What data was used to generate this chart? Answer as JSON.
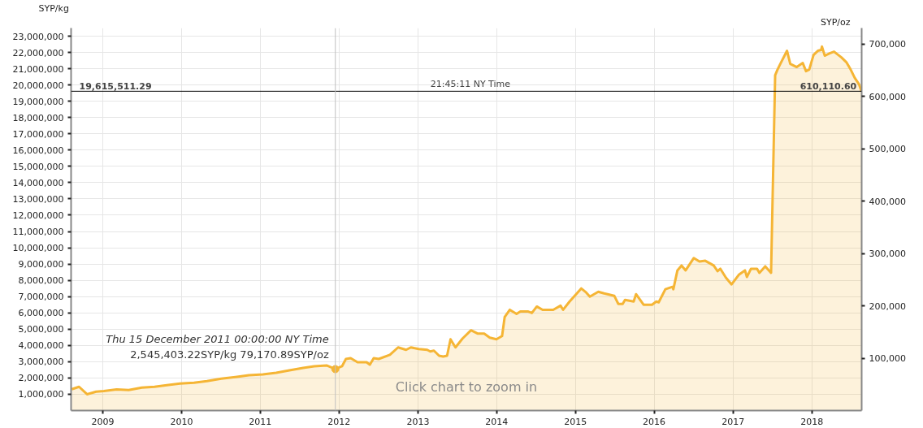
{
  "chart_data": {
    "type": "area",
    "ylabel": "SYP/kg",
    "y2label": "SYP/oz",
    "x": [
      "2008-08-10",
      "2008-09-13",
      "2008-10-20",
      "2008-12-01",
      "2009-01-06",
      "2009-03-06",
      "2009-05-01",
      "2009-07-01",
      "2009-08-29",
      "2009-10-25",
      "2009-12-25",
      "2010-02-28",
      "2010-04-29",
      "2010-07-04",
      "2010-09-08",
      "2010-11-09",
      "2011-01-13",
      "2011-03-16",
      "2011-05-16",
      "2011-07-19",
      "2011-09-08",
      "2011-11-04",
      "2011-12-15",
      "2012-01-15",
      "2012-02-02",
      "2012-02-24",
      "2012-03-27",
      "2012-05-08",
      "2012-05-23",
      "2012-06-10",
      "2012-07-03",
      "2012-08-24",
      "2012-10-01",
      "2012-11-07",
      "2012-11-29",
      "2013-01-05",
      "2013-02-13",
      "2013-02-27",
      "2013-03-16",
      "2013-04-09",
      "2013-04-28",
      "2013-05-16",
      "2013-06-01",
      "2013-06-24",
      "2013-07-27",
      "2013-09-04",
      "2013-10-04",
      "2013-11-04",
      "2013-11-30",
      "2013-12-31",
      "2014-01-26",
      "2014-02-07",
      "2014-03-03",
      "2014-04-03",
      "2014-04-21",
      "2014-05-25",
      "2014-06-13",
      "2014-07-06",
      "2014-08-02",
      "2014-09-20",
      "2014-10-24",
      "2014-11-05",
      "2014-12-05",
      "2015-01-01",
      "2015-01-28",
      "2015-02-20",
      "2015-03-09",
      "2015-04-17",
      "2015-05-14",
      "2015-06-30",
      "2015-07-19",
      "2015-08-08",
      "2015-08-19",
      "2015-09-28",
      "2015-10-09",
      "2015-11-13",
      "2015-12-22",
      "2016-01-11",
      "2016-01-22",
      "2016-02-22",
      "2016-03-26",
      "2016-03-30",
      "2016-04-18",
      "2016-05-07",
      "2016-05-26",
      "2016-07-03",
      "2016-07-29",
      "2016-08-25",
      "2016-10-03",
      "2016-10-21",
      "2016-11-03",
      "2016-11-29",
      "2016-12-25",
      "2017-01-29",
      "2017-02-25",
      "2017-03-06",
      "2017-03-25",
      "2017-04-22",
      "2017-05-03",
      "2017-05-30",
      "2017-06-26",
      "2017-07-15",
      "2017-07-26",
      "2017-08-08",
      "2017-09-08",
      "2017-09-23",
      "2017-10-23",
      "2017-11-20",
      "2017-12-05",
      "2017-12-20",
      "2018-01-09",
      "2018-01-29",
      "2018-02-13",
      "2018-02-17",
      "2018-03-02",
      "2018-03-25",
      "2018-04-14",
      "2018-05-18",
      "2018-06-10",
      "2018-06-30",
      "2018-07-19",
      "2018-08-08",
      "2018-08-19"
    ],
    "series": [
      {
        "color": "#f5b535",
        "values": [
          1310000,
          1460000,
          1000000,
          1160000,
          1200000,
          1300000,
          1260000,
          1410000,
          1460000,
          1560000,
          1660000,
          1710000,
          1810000,
          1960000,
          2060000,
          2170000,
          2220000,
          2320000,
          2470000,
          2620000,
          2720000,
          2770000,
          2545403.22,
          2720000,
          3170000,
          3220000,
          2970000,
          2970000,
          2820000,
          3220000,
          3170000,
          3420000,
          3880000,
          3730000,
          3880000,
          3780000,
          3730000,
          3630000,
          3680000,
          3370000,
          3320000,
          3370000,
          4380000,
          3880000,
          4430000,
          4930000,
          4730000,
          4730000,
          4480000,
          4380000,
          4580000,
          5740000,
          6190000,
          5940000,
          6090000,
          6090000,
          5990000,
          6390000,
          6190000,
          6190000,
          6440000,
          6190000,
          6700000,
          7100000,
          7500000,
          7250000,
          7000000,
          7300000,
          7200000,
          7050000,
          6550000,
          6550000,
          6800000,
          6700000,
          7150000,
          6500000,
          6500000,
          6700000,
          6650000,
          7450000,
          7600000,
          7450000,
          8610000,
          8910000,
          8610000,
          9370000,
          9160000,
          9200000,
          8910000,
          8560000,
          8710000,
          8160000,
          7750000,
          8360000,
          8610000,
          8210000,
          8710000,
          8710000,
          8460000,
          8860000,
          8460000,
          20600000,
          20950000,
          21300000,
          22100000,
          21300000,
          21100000,
          21350000,
          20850000,
          20950000,
          21850000,
          22100000,
          22150000,
          22360000,
          21800000,
          21950000,
          22050000,
          21700000,
          21400000,
          20950000,
          20440000,
          20040000,
          19615511.29
        ]
      }
    ],
    "xlim": [
      "2008-08-07",
      "2018-08-20"
    ],
    "xticks": [
      "2009",
      "2010",
      "2011",
      "2012",
      "2013",
      "2014",
      "2015",
      "2016",
      "2017",
      "2018"
    ],
    "ylim": [
      0,
      23500000
    ],
    "yticks": [
      {
        "value": 1000000,
        "label": "1,000,000"
      },
      {
        "value": 2000000,
        "label": "2,000,000"
      },
      {
        "value": 3000000,
        "label": "3,000,000"
      },
      {
        "value": 4000000,
        "label": "4,000,000"
      },
      {
        "value": 5000000,
        "label": "5,000,000"
      },
      {
        "value": 6000000,
        "label": "6,000,000"
      },
      {
        "value": 7000000,
        "label": "7,000,000"
      },
      {
        "value": 8000000,
        "label": "8,000,000"
      },
      {
        "value": 9000000,
        "label": "9,000,000"
      },
      {
        "value": 10000000,
        "label": "10,000,000"
      },
      {
        "value": 11000000,
        "label": "11,000,000"
      },
      {
        "value": 12000000,
        "label": "12,000,000"
      },
      {
        "value": 13000000,
        "label": "13,000,000"
      },
      {
        "value": 14000000,
        "label": "14,000,000"
      },
      {
        "value": 15000000,
        "label": "15,000,000"
      },
      {
        "value": 16000000,
        "label": "16,000,000"
      },
      {
        "value": 17000000,
        "label": "17,000,000"
      },
      {
        "value": 18000000,
        "label": "18,000,000"
      },
      {
        "value": 19000000,
        "label": "19,000,000"
      },
      {
        "value": 20000000,
        "label": "20,000,000"
      },
      {
        "value": 21000000,
        "label": "21,000,000"
      },
      {
        "value": 22000000,
        "label": "22,000,000"
      },
      {
        "value": 23000000,
        "label": "23,000,000"
      }
    ],
    "y2lim": [
      0,
      731000
    ],
    "y2ticks": [
      {
        "value": 100000,
        "label": "100,000"
      },
      {
        "value": 200000,
        "label": "200,000"
      },
      {
        "value": 300000,
        "label": "300,000"
      },
      {
        "value": 400000,
        "label": "400,000"
      },
      {
        "value": 500000,
        "label": "500,000"
      },
      {
        "value": 600000,
        "label": "600,000"
      },
      {
        "value": 700000,
        "label": "700,000"
      }
    ],
    "grid": true,
    "ref_lines": [
      {
        "axis": "y",
        "value": 19615511.29,
        "label": "19,615,511.29",
        "color": "#000000"
      },
      {
        "axis": "x",
        "value": "2011-12-15",
        "color": "#c0c0c0"
      }
    ],
    "annotations": [
      {
        "text": "21:45:11 NY Time",
        "x": "2013-09-01",
        "y": 19615511.29
      },
      {
        "text": "610,110.60",
        "x": "2018-08-19",
        "y": 19615511.29
      },
      {
        "text": "Thu 15 December 2011 00:00:00 NY Time",
        "x": "2011-12-15",
        "y": 2545403.22
      },
      {
        "text": "2,545,403.22SYP/kg 79,170.89SYP/oz",
        "x": "2011-12-15",
        "y": 2545403.22
      },
      "Click chart to zoom in"
    ]
  }
}
